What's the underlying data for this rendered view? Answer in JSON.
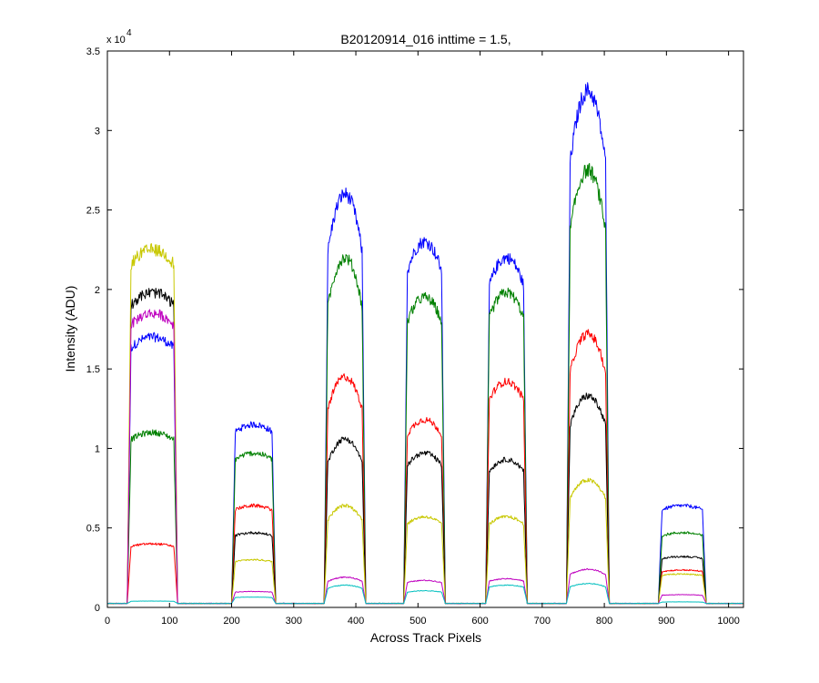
{
  "chart_data": {
    "type": "line",
    "title": "B20120914_016 inttime = 1.5,",
    "xlabel": "Across Track Pixels",
    "ylabel": "Intensity (ADU)",
    "y_exponent_label": "x 10",
    "y_exponent_power": "4",
    "xlim": [
      0,
      1024
    ],
    "ylim": [
      0,
      35000
    ],
    "xticks": [
      0,
      100,
      200,
      300,
      400,
      500,
      600,
      700,
      800,
      900,
      1000
    ],
    "yticks": [
      0,
      5000,
      10000,
      15000,
      20000,
      25000,
      30000,
      35000
    ],
    "xtick_labels": [
      "0",
      "100",
      "200",
      "300",
      "400",
      "500",
      "600",
      "700",
      "800",
      "900",
      "1000"
    ],
    "ytick_labels": [
      "0",
      "0.5",
      "1",
      "1.5",
      "2",
      "2.5",
      "3",
      "3.5"
    ],
    "grid": false,
    "baseline": 250,
    "plateaus": [
      {
        "x_start": 38,
        "x_end": 107,
        "shape": "flat"
      },
      {
        "x_start": 206,
        "x_end": 265,
        "shape": "flat"
      },
      {
        "x_start": 355,
        "x_end": 410,
        "shape": "peak"
      },
      {
        "x_start": 483,
        "x_end": 538,
        "shape": "rounded"
      },
      {
        "x_start": 615,
        "x_end": 670,
        "shape": "rounded"
      },
      {
        "x_start": 745,
        "x_end": 802,
        "shape": "peak"
      },
      {
        "x_start": 893,
        "x_end": 958,
        "shape": "flat"
      }
    ],
    "series": [
      {
        "color": "#0000ff",
        "values": [
          17000,
          11500,
          26000,
          23000,
          22000,
          32500,
          6400
        ]
      },
      {
        "color": "#008000",
        "values": [
          11000,
          9700,
          22000,
          19500,
          19800,
          27500,
          4700
        ]
      },
      {
        "color": "#ff0000",
        "values": [
          4000,
          6400,
          14500,
          11800,
          14200,
          17200,
          2350
        ]
      },
      {
        "color": "#000000",
        "values": [
          19800,
          4700,
          10600,
          9700,
          9300,
          13300,
          3200
        ]
      },
      {
        "color": "#c8c800",
        "values": [
          22500,
          3000,
          6400,
          5700,
          5700,
          8000,
          2100
        ]
      },
      {
        "color": "#bf00bf",
        "values": [
          18500,
          1000,
          1900,
          1700,
          1800,
          2400,
          800
        ]
      },
      {
        "color": "#00bfbf",
        "values": [
          400,
          650,
          1400,
          1050,
          1400,
          1500,
          350
        ]
      }
    ]
  }
}
